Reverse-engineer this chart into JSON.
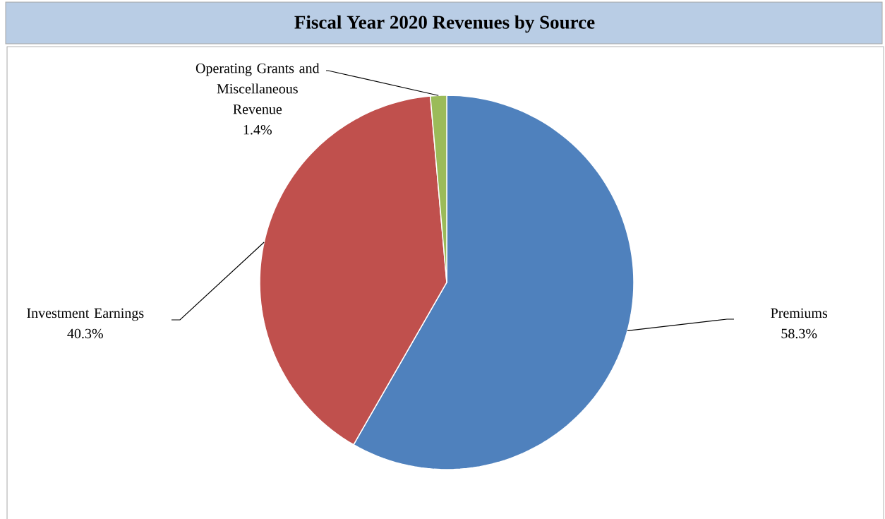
{
  "chart_data": {
    "type": "pie",
    "title": "Fiscal Year 2020 Revenues by Source",
    "categories": [
      "Premiums",
      "Investment Earnings",
      "Operating Grants and Miscellaneous Revenue"
    ],
    "values": [
      58.3,
      40.3,
      1.4
    ],
    "colors": [
      "#4f81bd",
      "#c0504d",
      "#9bbb59"
    ],
    "value_labels": [
      "58.3%",
      "40.3%",
      "1.4%"
    ]
  }
}
